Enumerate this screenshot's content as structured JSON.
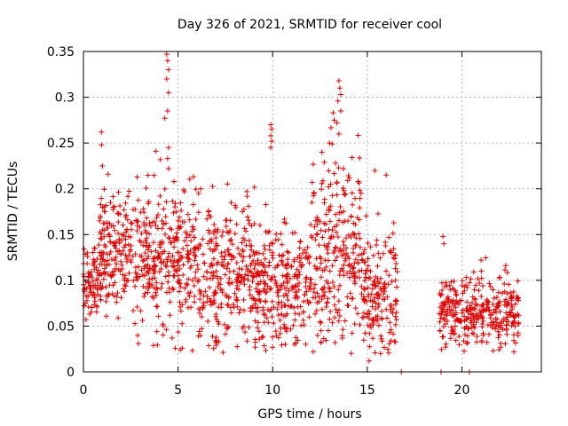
{
  "chart_data": {
    "type": "scatter",
    "title": "Day 326 of 2021, SRMTID for receiver cool",
    "xlabel": "GPS time / hours",
    "ylabel": "SRMTID / TECUs",
    "xlim": [
      0,
      24.2
    ],
    "ylim": [
      0,
      0.35
    ],
    "x_ticks": [
      0,
      5,
      10,
      15,
      20
    ],
    "x_tick_labels": [
      "0",
      "5",
      "10",
      "15",
      "20"
    ],
    "y_ticks": [
      0,
      0.05,
      0.1,
      0.15,
      0.2,
      0.25,
      0.3,
      0.35
    ],
    "y_tick_labels": [
      "0",
      "0.05",
      "0.1",
      "0.15",
      "0.2",
      "0.25",
      "0.3",
      "0.35"
    ],
    "grid": true,
    "marker": "plus",
    "color": "#e00000",
    "series": [
      {
        "name": "SRMTID",
        "segments": [
          {
            "x_start": 0.0,
            "x_end": 0.8,
            "mean": 0.1,
            "spread": 0.02,
            "count": 70
          },
          {
            "x_start": 0.8,
            "x_end": 3.5,
            "mean": 0.13,
            "spread": 0.035,
            "count": 260
          },
          {
            "x_start": 3.5,
            "x_end": 6.0,
            "mean": 0.12,
            "spread": 0.04,
            "count": 230
          },
          {
            "x_start": 6.0,
            "x_end": 9.0,
            "mean": 0.11,
            "spread": 0.04,
            "count": 270
          },
          {
            "x_start": 9.0,
            "x_end": 12.0,
            "mean": 0.095,
            "spread": 0.035,
            "count": 270
          },
          {
            "x_start": 12.0,
            "x_end": 14.8,
            "mean": 0.13,
            "spread": 0.05,
            "count": 260
          },
          {
            "x_start": 14.8,
            "x_end": 16.6,
            "mean": 0.085,
            "spread": 0.035,
            "count": 160
          },
          {
            "x_start": 18.8,
            "x_end": 23.0,
            "mean": 0.065,
            "spread": 0.018,
            "count": 330
          }
        ],
        "highlights": [
          {
            "x": 0.95,
            "y": 0.262
          },
          {
            "x": 0.95,
            "y": 0.248
          },
          {
            "x": 1.0,
            "y": 0.225
          },
          {
            "x": 4.4,
            "y": 0.347
          },
          {
            "x": 4.45,
            "y": 0.34
          },
          {
            "x": 4.5,
            "y": 0.33
          },
          {
            "x": 4.4,
            "y": 0.32
          },
          {
            "x": 4.5,
            "y": 0.305
          },
          {
            "x": 4.45,
            "y": 0.285
          },
          {
            "x": 4.3,
            "y": 0.277
          },
          {
            "x": 4.5,
            "y": 0.245
          },
          {
            "x": 4.45,
            "y": 0.233
          },
          {
            "x": 4.5,
            "y": 0.222
          },
          {
            "x": 9.9,
            "y": 0.27
          },
          {
            "x": 9.95,
            "y": 0.265
          },
          {
            "x": 9.9,
            "y": 0.258
          },
          {
            "x": 9.95,
            "y": 0.252
          },
          {
            "x": 9.9,
            "y": 0.245
          },
          {
            "x": 13.5,
            "y": 0.318
          },
          {
            "x": 13.55,
            "y": 0.31
          },
          {
            "x": 13.6,
            "y": 0.303
          },
          {
            "x": 13.45,
            "y": 0.296
          },
          {
            "x": 13.6,
            "y": 0.285
          },
          {
            "x": 13.2,
            "y": 0.283
          },
          {
            "x": 13.25,
            "y": 0.275
          },
          {
            "x": 13.4,
            "y": 0.272
          },
          {
            "x": 13.0,
            "y": 0.25
          },
          {
            "x": 13.5,
            "y": 0.26
          },
          {
            "x": 12.6,
            "y": 0.24
          },
          {
            "x": 15.4,
            "y": 0.22
          },
          {
            "x": 16.0,
            "y": 0.215
          },
          {
            "x": 19.0,
            "y": 0.148
          },
          {
            "x": 19.05,
            "y": 0.14
          },
          {
            "x": 15.1,
            "y": 0.012
          },
          {
            "x": 15.7,
            "y": 0.02
          },
          {
            "x": 7.0,
            "y": 0.032
          },
          {
            "x": 13.3,
            "y": 0.032
          },
          {
            "x": 16.8,
            "y": 0.0
          },
          {
            "x": 18.9,
            "y": 0.0
          },
          {
            "x": 20.4,
            "y": 0.0
          }
        ]
      }
    ]
  }
}
